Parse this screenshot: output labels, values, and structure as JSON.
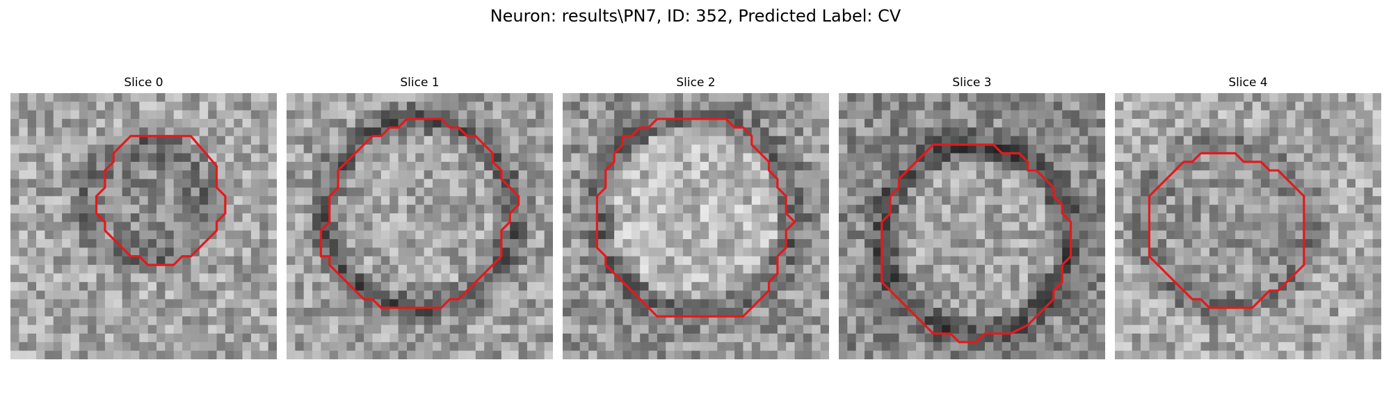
{
  "figure": {
    "title": "Neuron: results\\PN7, ID: 352, Predicted Label: CV",
    "contour_color": "#e31a1c",
    "colormap": "grayscale",
    "slices": [
      {
        "label": "Slice 0"
      },
      {
        "label": "Slice 1"
      },
      {
        "label": "Slice 2"
      },
      {
        "label": "Slice 3"
      },
      {
        "label": "Slice 4"
      }
    ]
  }
}
